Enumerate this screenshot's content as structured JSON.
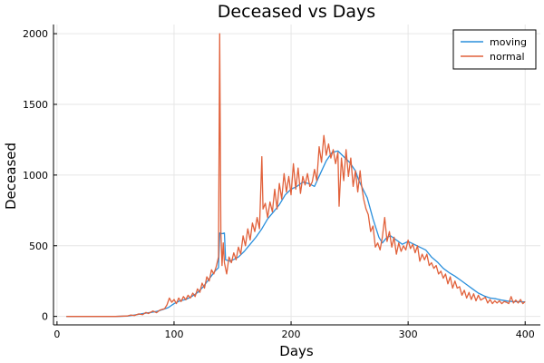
{
  "chart_data": {
    "type": "line",
    "title": "Deceased vs Days",
    "xlabel": "Days",
    "ylabel": "Deceased",
    "xlim": [
      -3,
      413
    ],
    "ylim": [
      -60,
      2065
    ],
    "xticks": [
      0,
      100,
      200,
      300,
      400
    ],
    "yticks": [
      0,
      500,
      1000,
      1500,
      2000
    ],
    "grid": true,
    "legend_position": "top-right",
    "series": [
      {
        "name": "moving",
        "color": "#2a8fdc",
        "points": [
          [
            8,
            0
          ],
          [
            20,
            0
          ],
          [
            30,
            0
          ],
          [
            40,
            0
          ],
          [
            50,
            0
          ],
          [
            60,
            2
          ],
          [
            65,
            8
          ],
          [
            70,
            15
          ],
          [
            75,
            22
          ],
          [
            80,
            28
          ],
          [
            85,
            35
          ],
          [
            90,
            48
          ],
          [
            95,
            62
          ],
          [
            100,
            90
          ],
          [
            105,
            110
          ],
          [
            110,
            120
          ],
          [
            115,
            140
          ],
          [
            120,
            168
          ],
          [
            125,
            210
          ],
          [
            130,
            265
          ],
          [
            135,
            320
          ],
          [
            138,
            345
          ],
          [
            139,
            590
          ],
          [
            141,
            585
          ],
          [
            143,
            590
          ],
          [
            144,
            400
          ],
          [
            148,
            390
          ],
          [
            155,
            420
          ],
          [
            160,
            460
          ],
          [
            165,
            510
          ],
          [
            170,
            560
          ],
          [
            175,
            620
          ],
          [
            180,
            690
          ],
          [
            185,
            740
          ],
          [
            190,
            790
          ],
          [
            195,
            860
          ],
          [
            200,
            900
          ],
          [
            205,
            920
          ],
          [
            210,
            950
          ],
          [
            215,
            940
          ],
          [
            220,
            920
          ],
          [
            225,
            1010
          ],
          [
            230,
            1100
          ],
          [
            235,
            1160
          ],
          [
            240,
            1170
          ],
          [
            245,
            1130
          ],
          [
            250,
            1090
          ],
          [
            255,
            1030
          ],
          [
            258,
            960
          ],
          [
            262,
            890
          ],
          [
            265,
            840
          ],
          [
            270,
            690
          ],
          [
            275,
            560
          ],
          [
            278,
            520
          ],
          [
            282,
            560
          ],
          [
            285,
            570
          ],
          [
            290,
            540
          ],
          [
            295,
            510
          ],
          [
            300,
            530
          ],
          [
            305,
            510
          ],
          [
            310,
            490
          ],
          [
            315,
            470
          ],
          [
            320,
            420
          ],
          [
            325,
            385
          ],
          [
            330,
            340
          ],
          [
            335,
            310
          ],
          [
            340,
            285
          ],
          [
            345,
            255
          ],
          [
            350,
            225
          ],
          [
            355,
            195
          ],
          [
            360,
            165
          ],
          [
            365,
            145
          ],
          [
            370,
            130
          ],
          [
            375,
            125
          ],
          [
            380,
            115
          ],
          [
            385,
            108
          ],
          [
            390,
            105
          ],
          [
            395,
            104
          ],
          [
            400,
            103
          ]
        ]
      },
      {
        "name": "normal",
        "color": "#e1613b",
        "points": [
          [
            8,
            0
          ],
          [
            20,
            0
          ],
          [
            30,
            0
          ],
          [
            40,
            0
          ],
          [
            50,
            0
          ],
          [
            60,
            3
          ],
          [
            63,
            10
          ],
          [
            66,
            6
          ],
          [
            70,
            18
          ],
          [
            73,
            12
          ],
          [
            76,
            28
          ],
          [
            78,
            20
          ],
          [
            82,
            38
          ],
          [
            85,
            26
          ],
          [
            88,
            45
          ],
          [
            92,
            55
          ],
          [
            94,
            82
          ],
          [
            96,
            130
          ],
          [
            98,
            100
          ],
          [
            100,
            120
          ],
          [
            102,
            90
          ],
          [
            104,
            130
          ],
          [
            106,
            105
          ],
          [
            108,
            140
          ],
          [
            110,
            118
          ],
          [
            112,
            150
          ],
          [
            114,
            130
          ],
          [
            116,
            165
          ],
          [
            118,
            140
          ],
          [
            120,
            195
          ],
          [
            122,
            170
          ],
          [
            124,
            235
          ],
          [
            126,
            200
          ],
          [
            128,
            280
          ],
          [
            130,
            250
          ],
          [
            132,
            330
          ],
          [
            134,
            300
          ],
          [
            136,
            350
          ],
          [
            138,
            420
          ],
          [
            139,
            2000
          ],
          [
            140,
            600
          ],
          [
            141,
            360
          ],
          [
            142,
            520
          ],
          [
            143,
            380
          ],
          [
            145,
            300
          ],
          [
            147,
            420
          ],
          [
            149,
            380
          ],
          [
            151,
            450
          ],
          [
            153,
            400
          ],
          [
            155,
            490
          ],
          [
            157,
            440
          ],
          [
            159,
            570
          ],
          [
            161,
            500
          ],
          [
            163,
            620
          ],
          [
            165,
            540
          ],
          [
            167,
            660
          ],
          [
            169,
            600
          ],
          [
            171,
            700
          ],
          [
            173,
            620
          ],
          [
            175,
            1130
          ],
          [
            176,
            760
          ],
          [
            178,
            800
          ],
          [
            180,
            700
          ],
          [
            182,
            810
          ],
          [
            184,
            740
          ],
          [
            186,
            900
          ],
          [
            188,
            760
          ],
          [
            190,
            940
          ],
          [
            192,
            830
          ],
          [
            194,
            1010
          ],
          [
            196,
            880
          ],
          [
            198,
            990
          ],
          [
            200,
            860
          ],
          [
            202,
            1080
          ],
          [
            204,
            900
          ],
          [
            206,
            1050
          ],
          [
            208,
            870
          ],
          [
            210,
            990
          ],
          [
            212,
            930
          ],
          [
            214,
            1010
          ],
          [
            216,
            920
          ],
          [
            218,
            950
          ],
          [
            220,
            1040
          ],
          [
            222,
            960
          ],
          [
            224,
            1200
          ],
          [
            226,
            1090
          ],
          [
            228,
            1280
          ],
          [
            230,
            1140
          ],
          [
            232,
            1220
          ],
          [
            234,
            1120
          ],
          [
            236,
            1180
          ],
          [
            238,
            1080
          ],
          [
            240,
            1160
          ],
          [
            241,
            780
          ],
          [
            243,
            1120
          ],
          [
            245,
            960
          ],
          [
            247,
            1180
          ],
          [
            249,
            990
          ],
          [
            251,
            1120
          ],
          [
            253,
            920
          ],
          [
            255,
            1030
          ],
          [
            257,
            880
          ],
          [
            259,
            1030
          ],
          [
            260,
            940
          ],
          [
            262,
            830
          ],
          [
            264,
            760
          ],
          [
            266,
            720
          ],
          [
            268,
            600
          ],
          [
            270,
            640
          ],
          [
            272,
            490
          ],
          [
            274,
            520
          ],
          [
            276,
            470
          ],
          [
            278,
            560
          ],
          [
            280,
            700
          ],
          [
            282,
            530
          ],
          [
            284,
            600
          ],
          [
            286,
            490
          ],
          [
            288,
            560
          ],
          [
            290,
            440
          ],
          [
            292,
            520
          ],
          [
            294,
            460
          ],
          [
            296,
            500
          ],
          [
            298,
            470
          ],
          [
            300,
            540
          ],
          [
            302,
            480
          ],
          [
            304,
            510
          ],
          [
            306,
            450
          ],
          [
            308,
            500
          ],
          [
            310,
            390
          ],
          [
            312,
            440
          ],
          [
            314,
            400
          ],
          [
            316,
            440
          ],
          [
            318,
            360
          ],
          [
            320,
            380
          ],
          [
            322,
            340
          ],
          [
            324,
            360
          ],
          [
            326,
            300
          ],
          [
            328,
            320
          ],
          [
            330,
            270
          ],
          [
            332,
            300
          ],
          [
            334,
            230
          ],
          [
            336,
            280
          ],
          [
            338,
            200
          ],
          [
            340,
            250
          ],
          [
            342,
            200
          ],
          [
            344,
            210
          ],
          [
            346,
            150
          ],
          [
            348,
            185
          ],
          [
            350,
            130
          ],
          [
            352,
            170
          ],
          [
            354,
            120
          ],
          [
            356,
            160
          ],
          [
            358,
            110
          ],
          [
            360,
            150
          ],
          [
            362,
            115
          ],
          [
            364,
            125
          ],
          [
            366,
            135
          ],
          [
            368,
            95
          ],
          [
            370,
            120
          ],
          [
            372,
            90
          ],
          [
            374,
            110
          ],
          [
            376,
            95
          ],
          [
            378,
            110
          ],
          [
            380,
            90
          ],
          [
            382,
            105
          ],
          [
            384,
            100
          ],
          [
            386,
            90
          ],
          [
            388,
            140
          ],
          [
            390,
            95
          ],
          [
            392,
            115
          ],
          [
            394,
            95
          ],
          [
            396,
            120
          ],
          [
            398,
            90
          ],
          [
            400,
            105
          ]
        ]
      }
    ]
  }
}
